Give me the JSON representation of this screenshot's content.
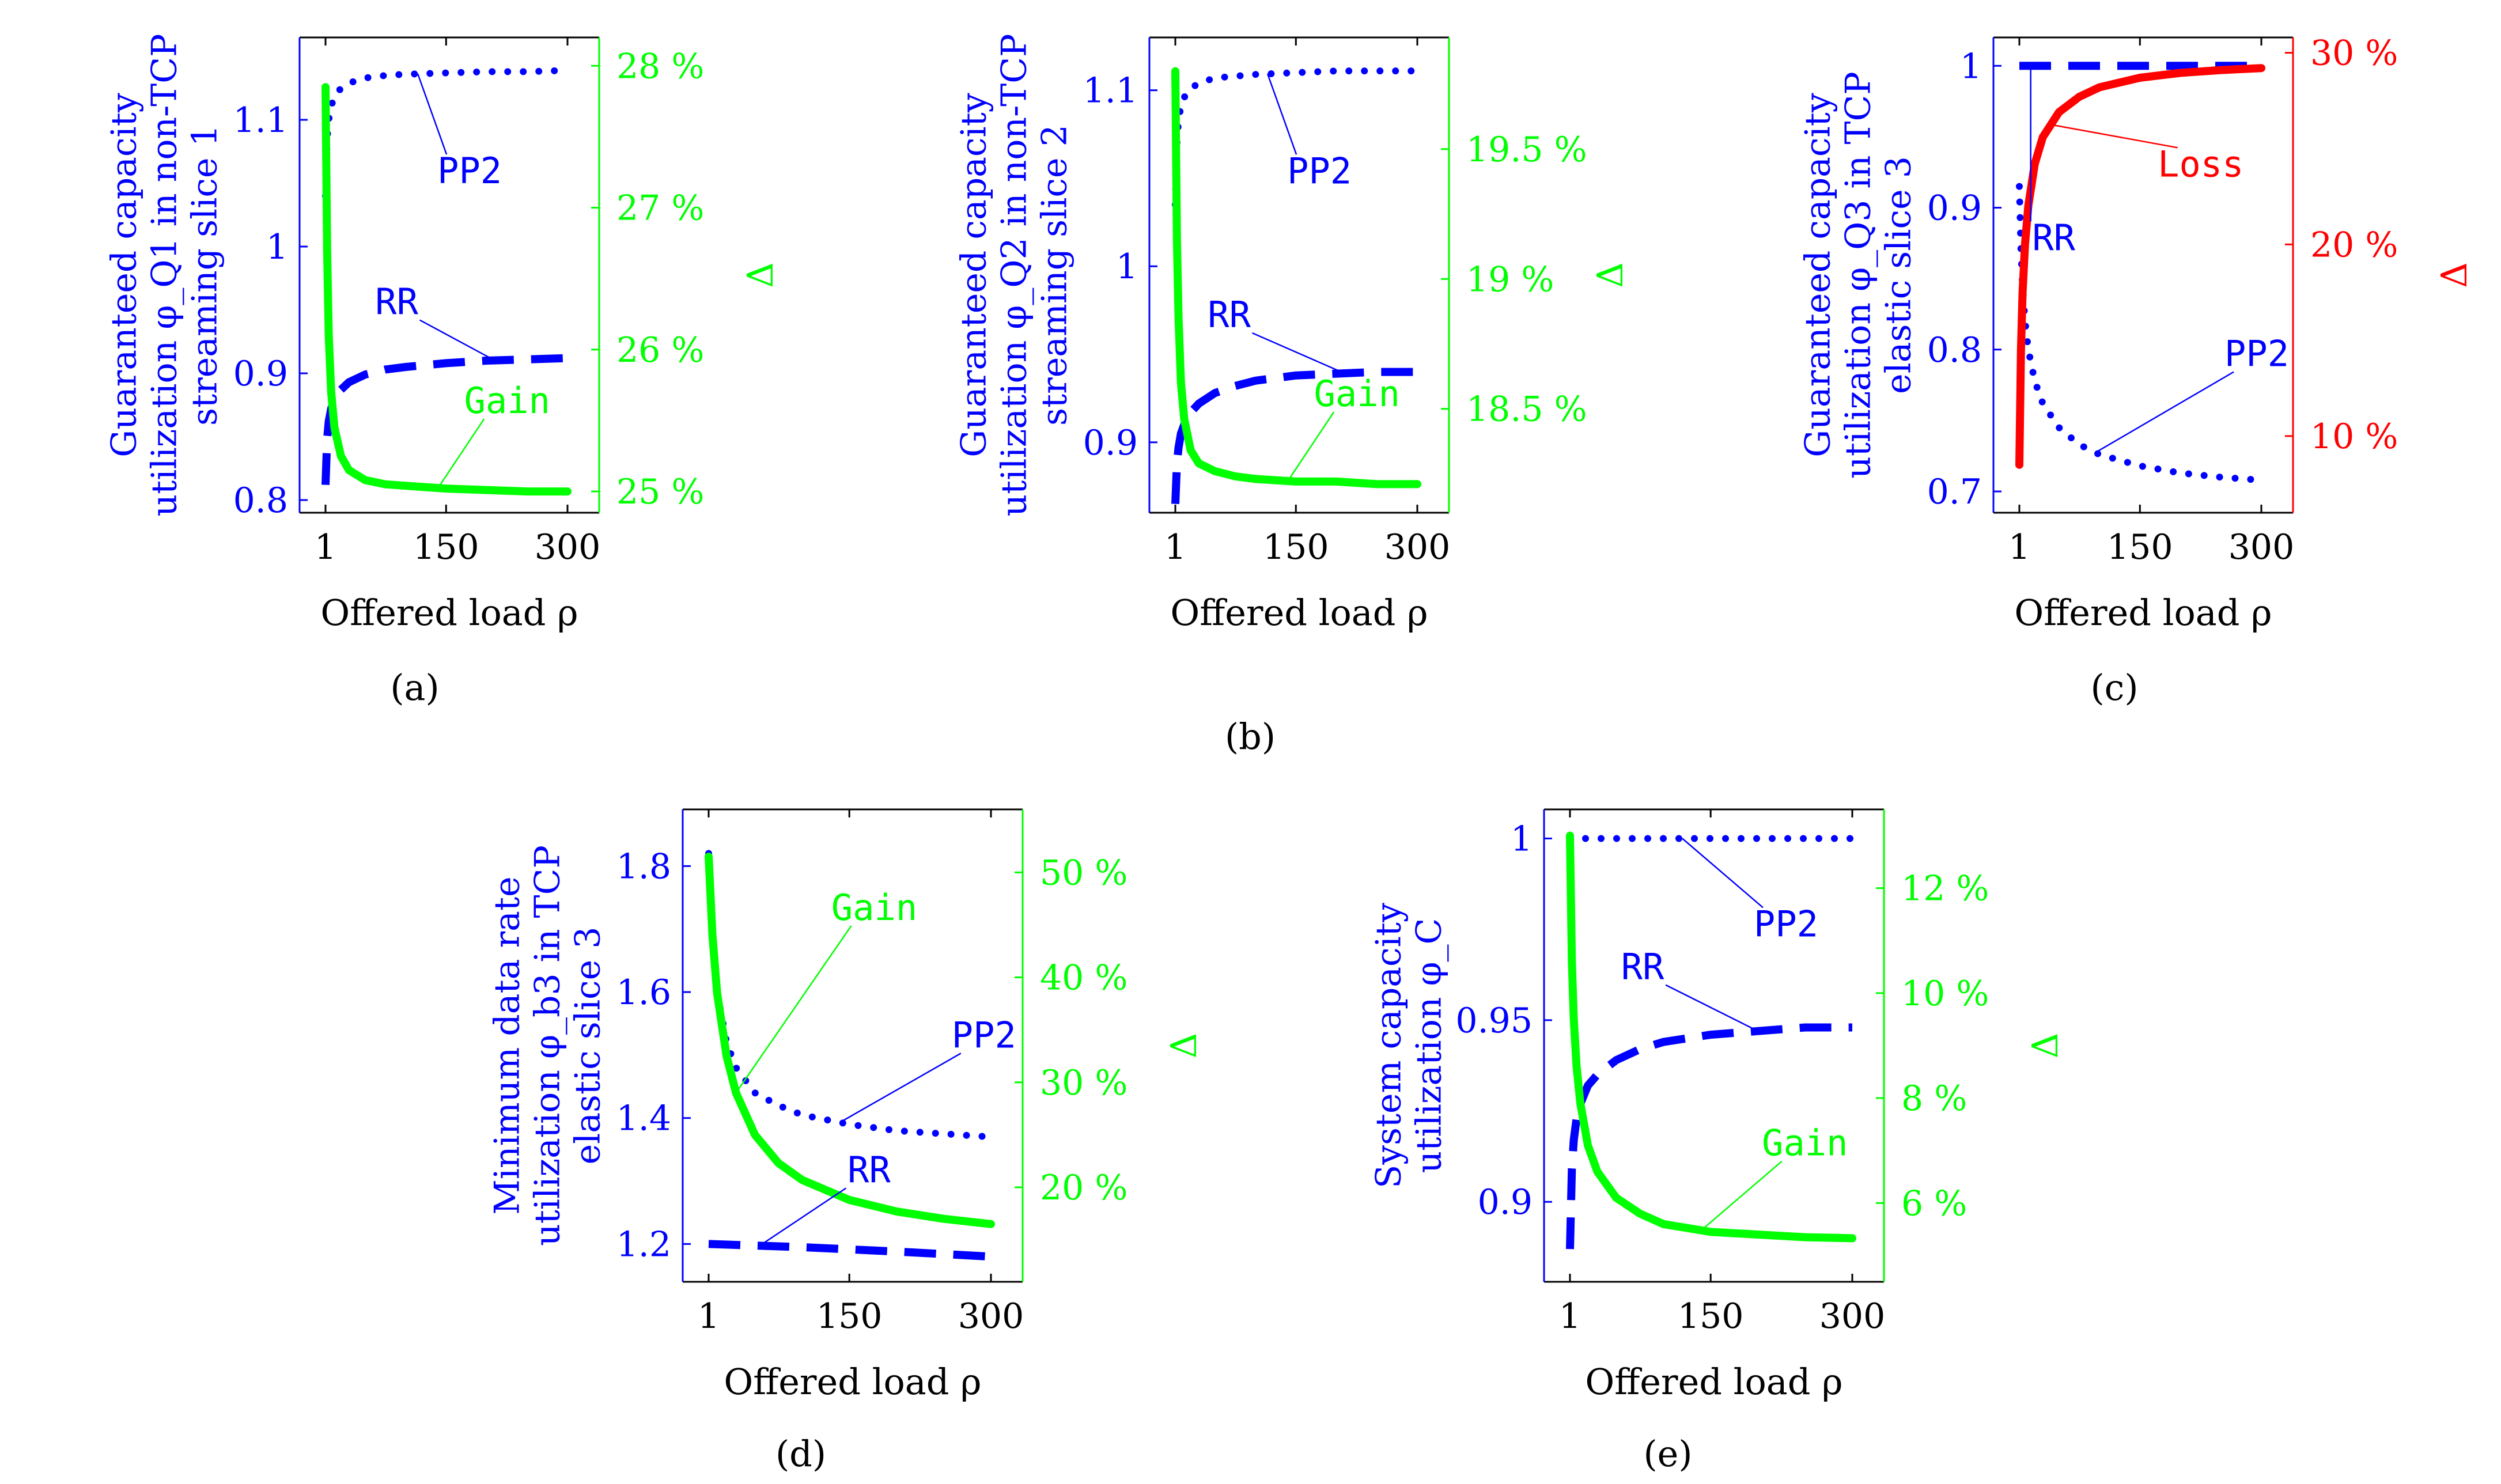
{
  "figure": {
    "caption_b": "(b)",
    "colors": {
      "blue": "#0000ff",
      "green": "#00ff00",
      "red": "#ff0000",
      "black": "#000000"
    }
  },
  "chart_data": [
    {
      "id": "a",
      "type": "line",
      "panel_label": "(a)",
      "xlabel": "Offered load ρ",
      "ylabel_lines": [
        "Guaranteed capacity",
        "utilization φ_Q1 in non-TCP",
        "streaming slice 1"
      ],
      "y2label": "Δ",
      "x_ticks": [
        1,
        150,
        300
      ],
      "xlim": [
        1,
        300
      ],
      "ylim": [
        0.79,
        1.165
      ],
      "y_ticks": [
        0.8,
        0.9,
        1,
        1.1
      ],
      "y_tick_labels": [
        "0.8",
        "0.9",
        "1",
        "1.1"
      ],
      "y2lim": [
        24.85,
        28.2
      ],
      "y2_ticks": [
        25,
        26,
        27,
        28
      ],
      "y2_tick_labels": [
        "25 %",
        "26 %",
        "27 %",
        "28 %"
      ],
      "series": [
        {
          "name": "PP2",
          "axis": "left",
          "style": "dotted",
          "color": "#0000ff",
          "x": [
            1,
            3,
            5,
            8,
            12,
            20,
            30,
            50,
            75,
            100,
            150,
            200,
            250,
            300
          ],
          "y": [
            1.04,
            1.085,
            1.1,
            1.111,
            1.118,
            1.125,
            1.129,
            1.133,
            1.135,
            1.136,
            1.137,
            1.138,
            1.138,
            1.139
          ]
        },
        {
          "name": "RR",
          "axis": "left",
          "style": "dashed",
          "color": "#0000ff",
          "x": [
            1,
            3,
            5,
            8,
            12,
            20,
            30,
            50,
            75,
            100,
            150,
            200,
            250,
            300
          ],
          "y": [
            0.812,
            0.848,
            0.862,
            0.872,
            0.879,
            0.887,
            0.893,
            0.899,
            0.903,
            0.905,
            0.908,
            0.91,
            0.911,
            0.912
          ]
        },
        {
          "name": "Gain",
          "axis": "right",
          "style": "solid",
          "color": "#00ff00",
          "x": [
            1,
            3,
            5,
            8,
            12,
            20,
            30,
            50,
            75,
            100,
            150,
            200,
            250,
            300
          ],
          "y": [
            27.85,
            26.7,
            26.1,
            25.7,
            25.45,
            25.25,
            25.15,
            25.08,
            25.05,
            25.04,
            25.02,
            25.01,
            25.0,
            25.0
          ]
        }
      ],
      "annotations": [
        {
          "text": "PP2",
          "series": "PP2",
          "at_x": 115,
          "color": "#0000ff"
        },
        {
          "text": "RR",
          "series": "RR",
          "at_x": 210,
          "color": "#0000ff"
        },
        {
          "text": "Gain",
          "series": "Gain",
          "at_x": 140,
          "color": "#00ff00"
        }
      ]
    },
    {
      "id": "b",
      "type": "line",
      "panel_label": "",
      "xlabel": "Offered load ρ",
      "ylabel_lines": [
        "Guaranteed capacity",
        "utilization φ_Q2 in non-TCP",
        "streaming slice 2"
      ],
      "y2label": "Δ",
      "x_ticks": [
        1,
        150,
        300
      ],
      "xlim": [
        1,
        300
      ],
      "ylim": [
        0.86,
        1.13
      ],
      "y_ticks": [
        0.9,
        1,
        1.1
      ],
      "y_tick_labels": [
        "0.9",
        "1",
        "1.1"
      ],
      "y2lim": [
        18.1,
        19.93
      ],
      "y2_ticks": [
        18.5,
        19,
        19.5
      ],
      "y2_tick_labels": [
        "18.5 %",
        "19 %",
        "19.5 %"
      ],
      "series": [
        {
          "name": "PP2",
          "axis": "left",
          "style": "dotted",
          "color": "#0000ff",
          "x": [
            1,
            3,
            5,
            8,
            12,
            20,
            30,
            50,
            75,
            100,
            150,
            200,
            250,
            300
          ],
          "y": [
            1.035,
            1.07,
            1.083,
            1.091,
            1.096,
            1.101,
            1.104,
            1.107,
            1.108,
            1.109,
            1.11,
            1.111,
            1.111,
            1.111
          ]
        },
        {
          "name": "RR",
          "axis": "left",
          "style": "dashed",
          "color": "#0000ff",
          "x": [
            1,
            3,
            5,
            8,
            12,
            20,
            30,
            50,
            75,
            100,
            150,
            200,
            250,
            300
          ],
          "y": [
            0.865,
            0.888,
            0.897,
            0.905,
            0.91,
            0.917,
            0.922,
            0.928,
            0.932,
            0.935,
            0.938,
            0.939,
            0.94,
            0.94
          ]
        },
        {
          "name": "Gain",
          "axis": "right",
          "style": "solid",
          "color": "#00ff00",
          "x": [
            1,
            3,
            5,
            8,
            12,
            20,
            30,
            50,
            75,
            100,
            150,
            200,
            250,
            300
          ],
          "y": [
            19.8,
            19.15,
            18.85,
            18.6,
            18.46,
            18.34,
            18.29,
            18.26,
            18.24,
            18.23,
            18.22,
            18.22,
            18.21,
            18.21
          ]
        }
      ],
      "annotations": [
        {
          "text": "PP2",
          "series": "PP2",
          "at_x": 115,
          "color": "#0000ff"
        },
        {
          "text": "RR",
          "series": "RR",
          "at_x": 210,
          "color": "#0000ff"
        },
        {
          "text": "Gain",
          "series": "Gain",
          "at_x": 140,
          "color": "#00ff00"
        }
      ]
    },
    {
      "id": "c",
      "type": "line",
      "panel_label": "(c)",
      "xlabel": "Offered load ρ",
      "ylabel_lines": [
        "Guaranteed capacity",
        "utilization φ_Q3 in TCP",
        "elastic slice 3"
      ],
      "y2label": "Δ",
      "x_ticks": [
        1,
        150,
        300
      ],
      "xlim": [
        1,
        300
      ],
      "ylim": [
        0.685,
        1.02
      ],
      "y_ticks": [
        0.7,
        0.8,
        0.9,
        1
      ],
      "y_tick_labels": [
        "0.7",
        "0.8",
        "0.9",
        "1"
      ],
      "y2lim": [
        6.0,
        30.8
      ],
      "y2_ticks": [
        10,
        20,
        30
      ],
      "y2_tick_labels": [
        "10 %",
        "20 %",
        "30 %"
      ],
      "series": [
        {
          "name": "RR",
          "axis": "left",
          "style": "dashed",
          "color": "#0000ff",
          "x": [
            1,
            300
          ],
          "y": [
            1.0,
            1.0
          ]
        },
        {
          "name": "PP2",
          "axis": "left",
          "style": "dotted",
          "color": "#0000ff",
          "x": [
            1,
            3,
            5,
            8,
            12,
            20,
            30,
            50,
            75,
            100,
            150,
            200,
            250,
            300
          ],
          "y": [
            0.915,
            0.87,
            0.845,
            0.82,
            0.8,
            0.778,
            0.762,
            0.745,
            0.733,
            0.726,
            0.718,
            0.713,
            0.71,
            0.708
          ]
        },
        {
          "name": "Loss",
          "axis": "right",
          "style": "solid",
          "color": "#ff0000",
          "x": [
            1,
            3,
            5,
            8,
            12,
            20,
            30,
            50,
            75,
            100,
            150,
            200,
            250,
            300
          ],
          "y": [
            8.5,
            14.5,
            17.5,
            20.0,
            22.0,
            24.2,
            25.6,
            26.9,
            27.7,
            28.2,
            28.7,
            28.95,
            29.1,
            29.2
          ]
        }
      ],
      "annotations": [
        {
          "text": "Loss",
          "series": "Loss",
          "at_x": 40,
          "color": "#ff0000"
        },
        {
          "text": "RR",
          "series": "RR",
          "at_x": 15,
          "color": "#0000ff"
        },
        {
          "text": "PP2",
          "series": "PP2",
          "at_x": 95,
          "color": "#0000ff"
        }
      ]
    },
    {
      "id": "d",
      "type": "line",
      "panel_label": "(d)",
      "xlabel": "Offered load ρ",
      "ylabel_lines": [
        "Minimum data rate",
        "utilization φ_b3 in TCP",
        "elastic slice 3"
      ],
      "y2label": "Δ",
      "x_ticks": [
        1,
        150,
        300
      ],
      "xlim": [
        1,
        300
      ],
      "ylim": [
        1.14,
        1.89
      ],
      "y_ticks": [
        1.2,
        1.4,
        1.6,
        1.8
      ],
      "y_tick_labels": [
        "1.2",
        "1.4",
        "1.6",
        "1.8"
      ],
      "y2lim": [
        11.0,
        56.0
      ],
      "y2_ticks": [
        20,
        30,
        40,
        50
      ],
      "y2_tick_labels": [
        "20 %",
        "30 %",
        "40 %",
        "50 %"
      ],
      "series": [
        {
          "name": "PP2",
          "axis": "left",
          "style": "dotted",
          "color": "#0000ff",
          "x": [
            1,
            5,
            10,
            20,
            30,
            50,
            75,
            100,
            150,
            200,
            250,
            300
          ],
          "y": [
            1.82,
            1.68,
            1.6,
            1.52,
            1.48,
            1.44,
            1.42,
            1.405,
            1.39,
            1.38,
            1.375,
            1.37
          ]
        },
        {
          "name": "RR",
          "axis": "left",
          "style": "dashed",
          "color": "#0000ff",
          "x": [
            1,
            100,
            200,
            300
          ],
          "y": [
            1.2,
            1.195,
            1.188,
            1.18
          ]
        },
        {
          "name": "Gain",
          "axis": "right",
          "style": "solid",
          "color": "#00ff00",
          "x": [
            1,
            5,
            10,
            20,
            30,
            50,
            75,
            100,
            150,
            200,
            250,
            300
          ],
          "y": [
            51.5,
            44.0,
            38.5,
            32.5,
            29.0,
            25.0,
            22.3,
            20.7,
            18.8,
            17.7,
            17.0,
            16.5
          ]
        }
      ],
      "annotations": [
        {
          "text": "Gain",
          "series": "Gain",
          "at_x": 30,
          "color": "#00ff00"
        },
        {
          "text": "PP2",
          "series": "PP2",
          "at_x": 140,
          "color": "#0000ff"
        },
        {
          "text": "RR",
          "series": "RR",
          "at_x": 55,
          "color": "#0000ff"
        }
      ]
    },
    {
      "id": "e",
      "type": "line",
      "panel_label": "(e)",
      "xlabel": "Offered load ρ",
      "ylabel_lines": [
        "System capacity",
        "utilization φ_C"
      ],
      "y2label": "Δ",
      "x_ticks": [
        1,
        150,
        300
      ],
      "xlim": [
        1,
        300
      ],
      "ylim": [
        0.878,
        1.008
      ],
      "y_ticks": [
        0.9,
        0.95,
        1
      ],
      "y_tick_labels": [
        "0.9",
        "0.95",
        "1"
      ],
      "y2lim": [
        4.5,
        13.5
      ],
      "y2_ticks": [
        6,
        8,
        10,
        12
      ],
      "y2_tick_labels": [
        "6 %",
        "8 %",
        "10 %",
        "12 %"
      ],
      "series": [
        {
          "name": "PP2",
          "axis": "left",
          "style": "dotted",
          "color": "#0000ff",
          "x": [
            1,
            300
          ],
          "y": [
            1.0,
            1.0
          ]
        },
        {
          "name": "RR",
          "axis": "left",
          "style": "dashed",
          "color": "#0000ff",
          "x": [
            1,
            3,
            5,
            8,
            12,
            20,
            30,
            50,
            75,
            100,
            150,
            200,
            250,
            300
          ],
          "y": [
            0.887,
            0.909,
            0.917,
            0.923,
            0.927,
            0.932,
            0.935,
            0.939,
            0.942,
            0.944,
            0.946,
            0.947,
            0.948,
            0.948
          ]
        },
        {
          "name": "Gain",
          "axis": "right",
          "style": "solid",
          "color": "#00ff00",
          "x": [
            1,
            3,
            5,
            8,
            12,
            20,
            30,
            50,
            75,
            100,
            150,
            200,
            250,
            300
          ],
          "y": [
            13.0,
            10.6,
            9.5,
            8.6,
            7.9,
            7.1,
            6.6,
            6.1,
            5.8,
            5.6,
            5.45,
            5.4,
            5.35,
            5.33
          ]
        }
      ],
      "annotations": [
        {
          "text": "PP2",
          "series": "PP2",
          "at_x": 120,
          "color": "#0000ff"
        },
        {
          "text": "RR",
          "series": "RR",
          "at_x": 200,
          "color": "#0000ff"
        },
        {
          "text": "Gain",
          "series": "Gain",
          "at_x": 140,
          "color": "#00ff00"
        }
      ]
    }
  ]
}
